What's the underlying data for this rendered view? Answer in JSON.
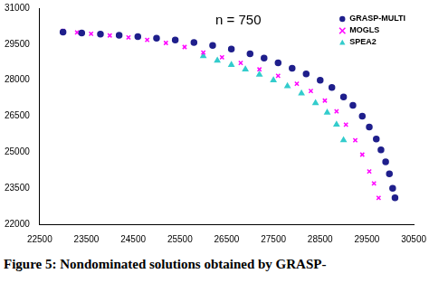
{
  "chart_data": {
    "type": "scatter",
    "annotation": "n = 750",
    "caption": "Figure 5: Nondominated solutions obtained by GRASP-",
    "xlim": [
      22500,
      30500
    ],
    "xticks": [
      22500,
      23500,
      24500,
      25500,
      26500,
      27500,
      28500,
      29500,
      30500
    ],
    "ylim": [
      22000,
      31000
    ],
    "yticks": [
      22000,
      23500,
      25000,
      26500,
      28000,
      29500,
      31000
    ],
    "grid": false,
    "legend": "upper right",
    "series": [
      {
        "name": "GRASP-MULTI",
        "color": "#1f1f8c",
        "marker": "circle",
        "x": [
          23000,
          23400,
          23800,
          24200,
          24600,
          25000,
          25400,
          25800,
          26200,
          26600,
          27000,
          27300,
          27600,
          27900,
          28200,
          28500,
          28750,
          29000,
          29200,
          29400,
          29550,
          29700,
          29800,
          29900,
          29980,
          30050,
          30100
        ],
        "values": [
          30000,
          29960,
          29920,
          29870,
          29810,
          29750,
          29670,
          29570,
          29450,
          29300,
          29100,
          28920,
          28720,
          28500,
          28260,
          28000,
          27700,
          27300,
          26950,
          26500,
          26050,
          25550,
          25100,
          24600,
          24100,
          23500,
          23100
        ]
      },
      {
        "name": "MOGLS",
        "color": "#ff00ff",
        "marker": "x",
        "x": [
          23000,
          23300,
          23600,
          24000,
          24400,
          24800,
          25200,
          25600,
          26000,
          26400,
          26800,
          27200,
          27600,
          28000,
          28300,
          28600,
          28850,
          29050,
          29250,
          29400,
          29550,
          29650,
          29750
        ],
        "values": [
          30050,
          29990,
          29930,
          29860,
          29780,
          29680,
          29550,
          29380,
          29150,
          28950,
          28720,
          28450,
          28180,
          27850,
          27550,
          27150,
          26700,
          26150,
          25500,
          24900,
          24200,
          23700,
          23100
        ]
      },
      {
        "name": "SPEA2",
        "color": "#33cccc",
        "marker": "triangle",
        "x": [
          26000,
          26300,
          26600,
          26900,
          27200,
          27500,
          27800,
          28100,
          28400,
          28650,
          28850,
          29000
        ],
        "values": [
          29000,
          28820,
          28640,
          28450,
          28230,
          28000,
          27750,
          27450,
          27050,
          26650,
          26150,
          25500
        ]
      }
    ]
  }
}
